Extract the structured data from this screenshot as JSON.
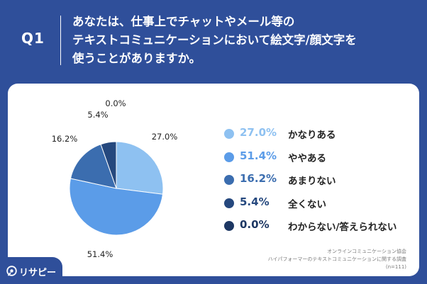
{
  "question": {
    "label": "Q1",
    "text": "あなたは、仕事上でチャットやメール等の\nテキストコミュニケーションにおいて絵文字/顔文字を\n使うことがありますか。"
  },
  "chart_data": {
    "type": "pie",
    "title": "",
    "slices": [
      {
        "label": "かなりある",
        "value": 27.0,
        "display": "27.0%",
        "color": "#8ec1f1"
      },
      {
        "label": "ややある",
        "value": 51.4,
        "display": "51.4%",
        "color": "#5b9ce8"
      },
      {
        "label": "あまりない",
        "value": 16.2,
        "display": "16.2%",
        "color": "#3b6daf"
      },
      {
        "label": "全くない",
        "value": 5.4,
        "display": "5.4%",
        "color": "#25487e"
      },
      {
        "label": "わからない/答えられない",
        "value": 0.0,
        "display": "0.0%",
        "color": "#1d3763"
      }
    ],
    "legend_position": "right"
  },
  "footer": {
    "line1": "オンラインコミュニケーション協会",
    "line2": "ハイパフォーマーのテキストコミュニケーションに関する調査",
    "line3": "(n=111)"
  },
  "brand": {
    "name": "リサピー",
    "icon": "pin-icon",
    "color": "#2f4f9a"
  }
}
